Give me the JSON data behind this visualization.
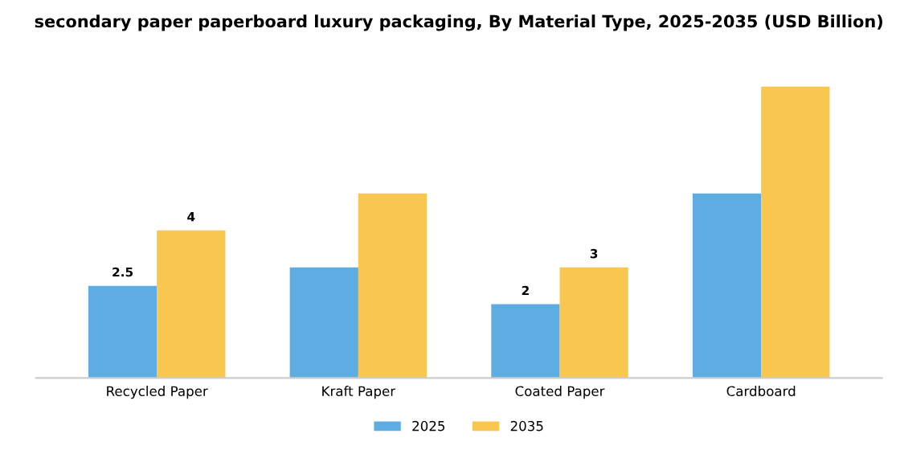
{
  "chart_data": {
    "type": "bar",
    "title": "secondary paper paperboard luxury packaging, By Material Type, 2025-2035 (USD Billion)",
    "categories": [
      "Recycled Paper",
      "Kraft Paper",
      "Coated Paper",
      "Cardboard"
    ],
    "series": [
      {
        "name": "2025",
        "color": "#5dade2",
        "values": [
          2.5,
          3.0,
          2.0,
          5.0
        ],
        "value_labels": [
          "2.5",
          null,
          "2",
          null
        ]
      },
      {
        "name": "2035",
        "color": "#f9c74f",
        "values": [
          4.0,
          5.0,
          3.0,
          7.9
        ],
        "value_labels": [
          "4",
          null,
          "3",
          null
        ]
      }
    ],
    "legend": "bottom",
    "grid": false
  }
}
